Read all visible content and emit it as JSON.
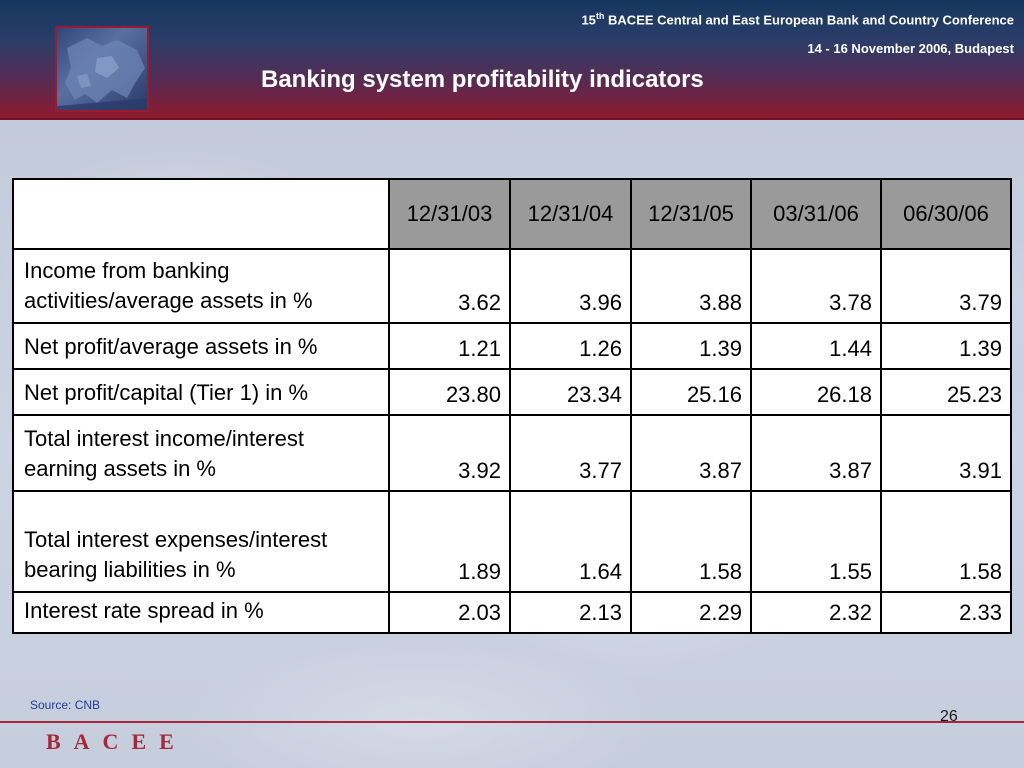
{
  "header": {
    "conference_ordinal": "15",
    "conference_ordinal_suffix": "th",
    "conference_name": " BACEE Central and East European Bank and Country Conference",
    "conference_date": "14 - 16 November 2006, Budapest",
    "slide_title": "Banking system profitability indicators"
  },
  "table": {
    "columns": [
      "12/31/03",
      "12/31/04",
      "12/31/05",
      "03/31/06",
      "06/30/06"
    ],
    "rows": [
      {
        "label": "Income from banking activities/average assets in %",
        "values": [
          "3.62",
          "3.96",
          "3.88",
          "3.78",
          "3.79"
        ]
      },
      {
        "label": "Net profit/average assets in %",
        "values": [
          "1.21",
          "1.26",
          "1.39",
          "1.44",
          "1.39"
        ]
      },
      {
        "label": "Net profit/capital (Tier 1) in %",
        "values": [
          "23.80",
          "23.34",
          "25.16",
          "26.18",
          "25.23"
        ]
      },
      {
        "label": "Total interest income/interest earning assets in %",
        "values": [
          "3.92",
          "3.77",
          "3.87",
          "3.87",
          "3.91"
        ]
      },
      {
        "label": "Total interest expenses/interest bearing liabilities in %",
        "values": [
          "1.89",
          "1.64",
          "1.58",
          "1.55",
          "1.58"
        ]
      },
      {
        "label": "Interest rate spread in %",
        "values": [
          "2.03",
          "2.13",
          "2.29",
          "2.32",
          "2.33"
        ]
      }
    ]
  },
  "footer": {
    "source": "Source: CNB",
    "page_number": "26",
    "logo_text": "BACEE"
  },
  "colors": {
    "header_top": "#14375f",
    "header_bottom": "#8d1a2c",
    "accent": "#a3283a",
    "table_header_bg": "#9a9a9a",
    "source_text": "#1f3f9a"
  },
  "icons": {
    "logo_image": "europe-map-icon"
  }
}
